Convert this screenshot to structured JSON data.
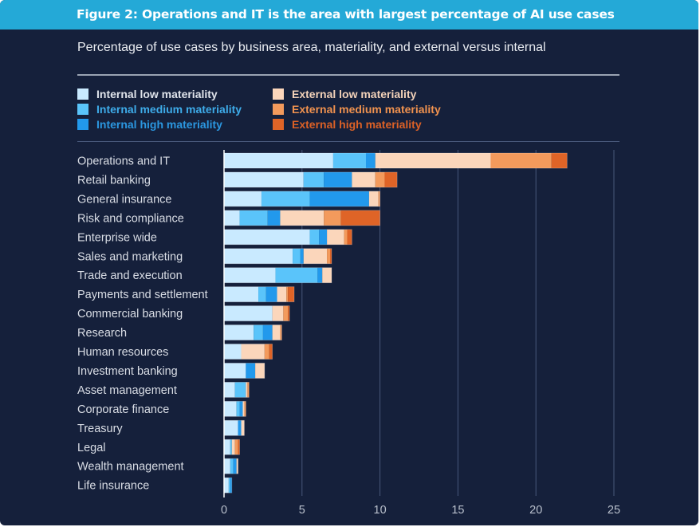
{
  "header": {
    "figure_title": "Figure 2: Operations and IT is the area with largest percentage of AI use cases"
  },
  "colors": {
    "banner": "#24a9d7",
    "background": "#15203b"
  },
  "chart_data": {
    "type": "bar",
    "orientation": "horizontal",
    "stacked": true,
    "title": "Percentage of use cases by business area, materiality, and external versus internal",
    "xlabel": "",
    "ylabel": "",
    "xlim": [
      0,
      25
    ],
    "xticks": [
      0,
      5,
      10,
      15,
      20,
      25
    ],
    "grid": true,
    "legend_position": "top-left",
    "categories": [
      "Operations and IT",
      "Retail banking",
      "General insurance",
      "Risk and compliance",
      "Enterprise wide",
      "Sales and marketing",
      "Trade and execution",
      "Payments and settlement",
      "Commercial banking",
      "Research",
      "Human resources",
      "Investment banking",
      "Asset management",
      "Corporate finance",
      "Treasury",
      "Legal",
      "Wealth management",
      "Life insurance"
    ],
    "series": [
      {
        "name": "Internal low materiality",
        "color": "#c9eaff",
        "text_color": "#dfe3ea",
        "values": [
          7.0,
          5.1,
          2.4,
          1.0,
          5.5,
          4.4,
          3.3,
          2.2,
          3.1,
          1.9,
          1.1,
          1.4,
          0.7,
          0.8,
          0.9,
          0.4,
          0.4,
          0.3
        ]
      },
      {
        "name": "Internal medium materiality",
        "color": "#5ac4fa",
        "text_color": "#3eacea",
        "values": [
          2.1,
          1.3,
          3.1,
          1.8,
          0.6,
          0.5,
          2.7,
          0.5,
          0.0,
          0.6,
          0.0,
          0.0,
          0.7,
          0.2,
          0.0,
          0.1,
          0.2,
          0.1
        ]
      },
      {
        "name": "Internal high materiality",
        "color": "#2299ec",
        "text_color": "#2b97e0",
        "values": [
          0.6,
          1.8,
          3.8,
          0.8,
          0.5,
          0.2,
          0.3,
          0.7,
          0.0,
          0.6,
          0.0,
          0.6,
          0.0,
          0.2,
          0.2,
          0.0,
          0.2,
          0.1
        ]
      },
      {
        "name": "External low materiality",
        "color": "#fbd6bb",
        "text_color": "#f3d2b9",
        "values": [
          7.4,
          1.5,
          0.6,
          2.8,
          1.1,
          1.5,
          0.6,
          0.6,
          0.7,
          0.5,
          1.5,
          0.6,
          0.1,
          0.1,
          0.2,
          0.2,
          0.1,
          0.0
        ]
      },
      {
        "name": "External medium materiality",
        "color": "#f39a5c",
        "text_color": "#f0924f",
        "values": [
          3.9,
          0.6,
          0.1,
          1.1,
          0.2,
          0.2,
          0.0,
          0.1,
          0.3,
          0.1,
          0.3,
          0.0,
          0.1,
          0.1,
          0.0,
          0.2,
          0.0,
          0.0
        ]
      },
      {
        "name": "External high materiality",
        "color": "#df6427",
        "text_color": "#dc6126",
        "values": [
          1.0,
          0.8,
          0.0,
          2.5,
          0.3,
          0.1,
          0.0,
          0.4,
          0.1,
          0.0,
          0.2,
          0.0,
          0.0,
          0.0,
          0.0,
          0.1,
          0.0,
          0.0
        ]
      }
    ]
  }
}
